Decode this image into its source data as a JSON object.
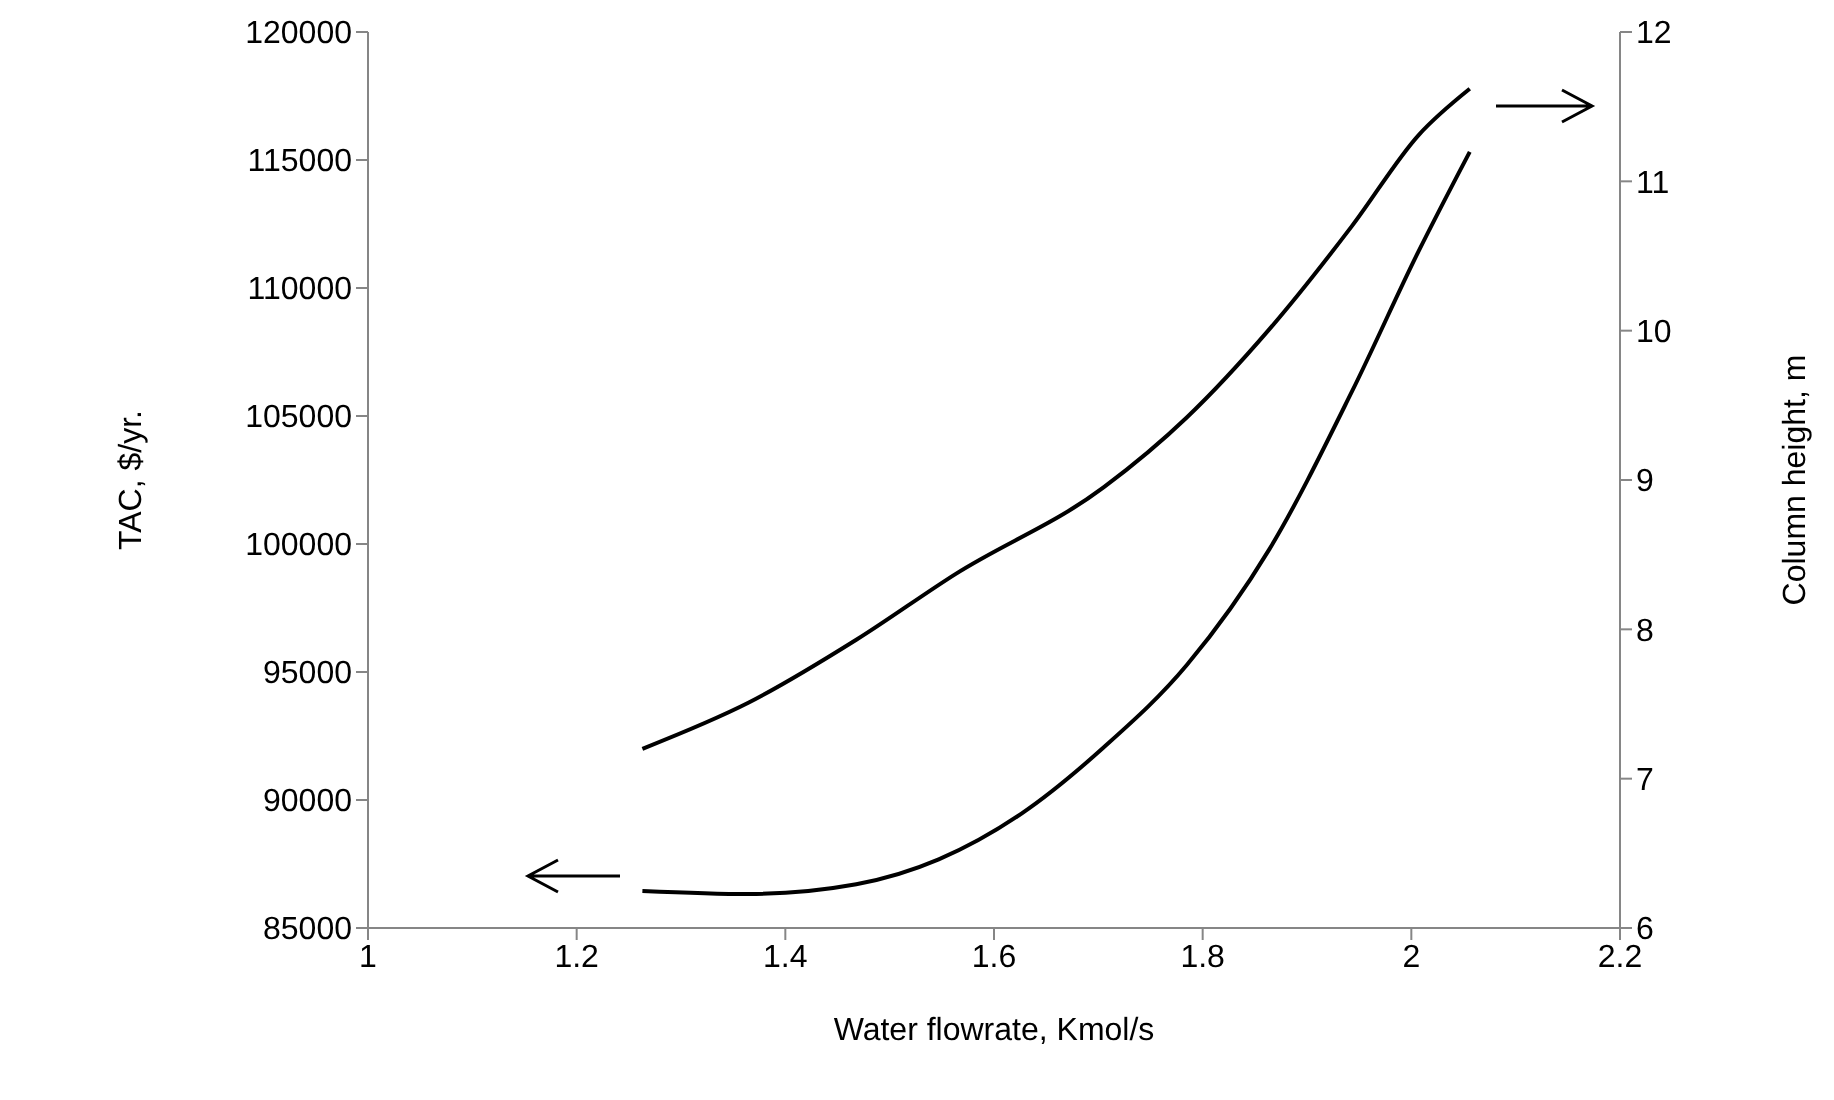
{
  "chart_data": {
    "type": "line",
    "xlabel": "Water flowrate, Kmol/s",
    "ylabel": "TAC, $/yr.",
    "y2label": "Column height, m",
    "xlim": [
      1,
      2.2
    ],
    "xticks": [
      1,
      1.2,
      1.4,
      1.6,
      1.8,
      2,
      2.2
    ],
    "ylim": [
      85000,
      120000
    ],
    "yticks": [
      85000,
      90000,
      95000,
      100000,
      105000,
      110000,
      115000,
      120000
    ],
    "y2lim": [
      6,
      12
    ],
    "y2ticks": [
      6,
      7,
      8,
      9,
      10,
      11,
      12
    ],
    "marker": "none",
    "line_style": "solid",
    "series": [
      {
        "color": "#000000",
        "x": [
          1.263,
          1.365,
          1.468,
          1.547,
          1.626,
          1.705,
          1.785,
          1.864,
          1.943,
          2.007,
          2.056
        ],
        "values": [
          86450,
          86330,
          86710,
          87680,
          89460,
          92050,
          95280,
          99800,
          105950,
          111440,
          115320
        ]
      },
      {
        "color": "#000000",
        "axis": "y2",
        "x": [
          1.263,
          1.365,
          1.468,
          1.563,
          1.705,
          1.785,
          1.864,
          1.943,
          2.007,
          2.056
        ],
        "values": [
          7.2,
          7.51,
          7.93,
          8.37,
          8.95,
          9.42,
          10.01,
          10.7,
          11.31,
          11.62
        ]
      }
    ]
  }
}
